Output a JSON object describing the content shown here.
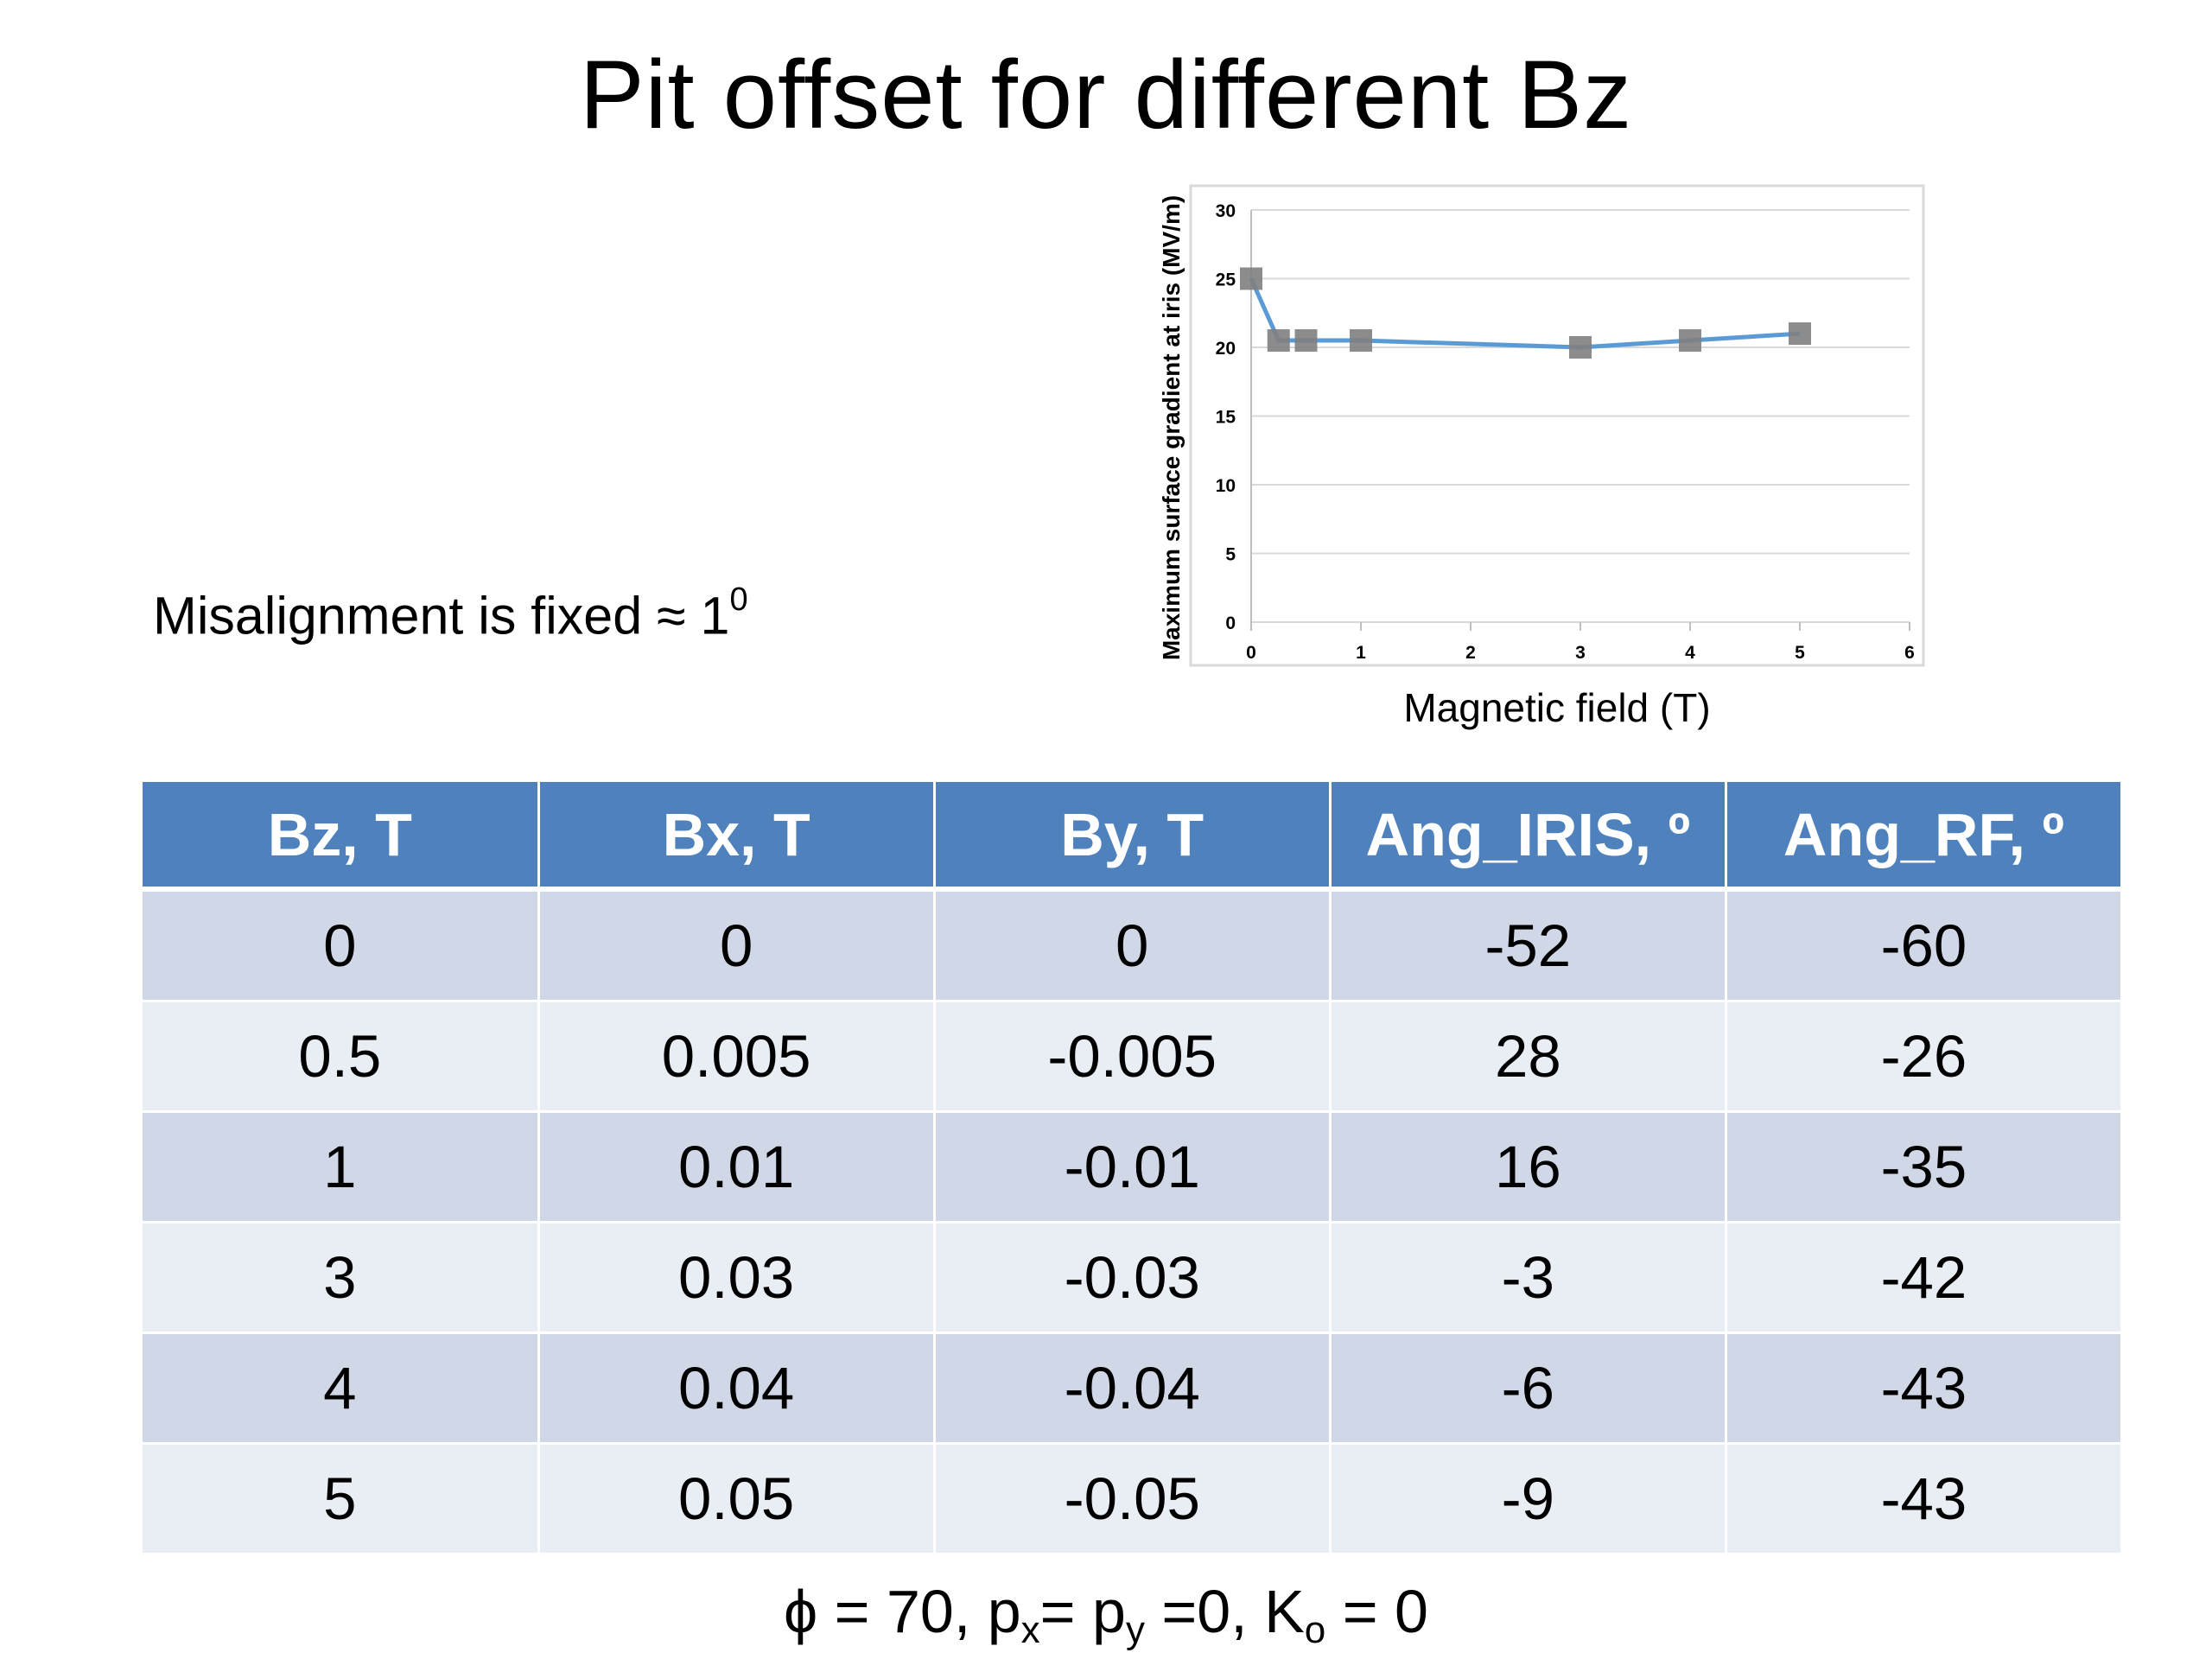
{
  "slide": {
    "title": "Pit offset for different Bz",
    "misalignment_text": "Misalignment is fixed  ≈ 1",
    "misalignment_sup": "0",
    "footer": {
      "phi": "ϕ = 70,  p",
      "px_sub": "x",
      "mid": "= p",
      "py_sub": "y",
      "mid2": " =0,  K",
      "k_sub": "o",
      "end": " = 0"
    }
  },
  "chart_data": {
    "type": "line",
    "x": [
      0,
      0.25,
      0.5,
      1,
      3,
      4,
      5
    ],
    "series": [
      {
        "values": [
          25,
          20.5,
          20.5,
          20.5,
          20,
          20.5,
          21
        ]
      }
    ],
    "xlabel": "Magnetic field (T)",
    "ylabel": "Maximum surface gradient at iris (MV/m)",
    "xlim": [
      0,
      6
    ],
    "ylim": [
      0,
      30
    ],
    "xticks": [
      "0",
      "1",
      "2",
      "3",
      "4",
      "5",
      "6"
    ],
    "yticks": [
      "0",
      "5",
      "10",
      "15",
      "20",
      "25",
      "30"
    ],
    "grid": true,
    "colors": {
      "line": "#5b9bd5",
      "marker": "#7f7f7f"
    }
  },
  "table": {
    "headers": [
      "Bz, T",
      "Bx, T",
      "By, T",
      "Ang_IRIS, º",
      "Ang_RF, º"
    ],
    "rows": [
      [
        "0",
        "0",
        "0",
        "-52",
        "-60"
      ],
      [
        "0.5",
        "0.005",
        "-0.005",
        "28",
        "-26"
      ],
      [
        "1",
        "0.01",
        "-0.01",
        "16",
        "-35"
      ],
      [
        "3",
        "0.03",
        "-0.03",
        "-3",
        "-42"
      ],
      [
        "4",
        "0.04",
        "-0.04",
        "-6",
        "-43"
      ],
      [
        "5",
        "0.05",
        "-0.05",
        "-9",
        "-43"
      ]
    ],
    "colors": {
      "header": "#4f81bd",
      "row_odd": "#d0d8e8",
      "row_even": "#e9edf4"
    }
  }
}
